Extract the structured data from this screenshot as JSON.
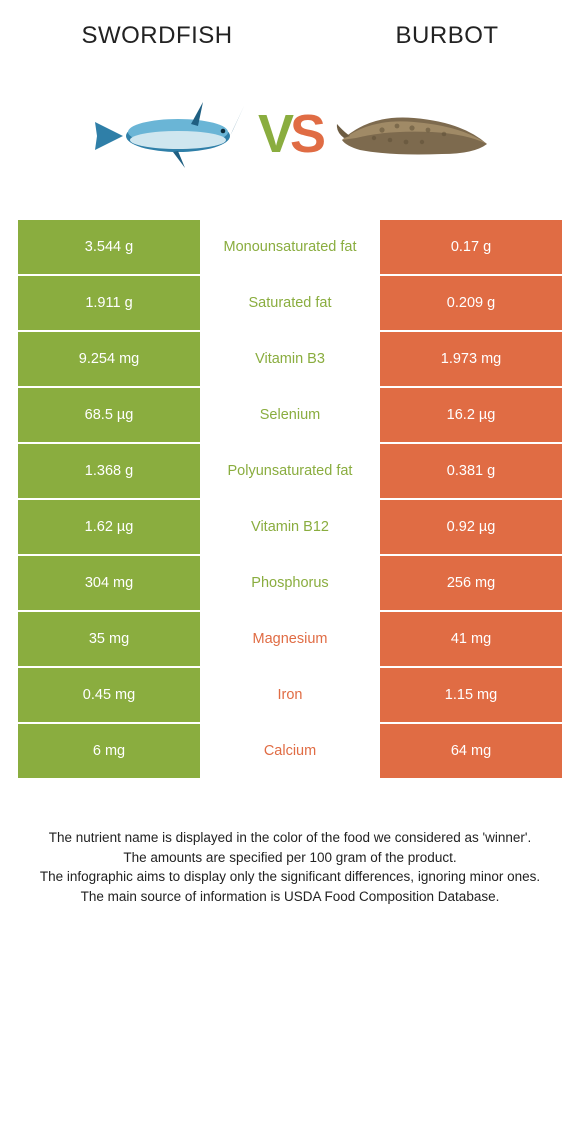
{
  "header": {
    "left": "Swordfish",
    "right": "Burbot"
  },
  "vs": {
    "v": "V",
    "s": "S"
  },
  "colors": {
    "left": "#8aad3f",
    "right": "#e06c44",
    "leftText": "#8aad3f",
    "rightText": "#e06c44",
    "bg": "#ffffff"
  },
  "rows": [
    {
      "left": "3.544 g",
      "label": "Monounsaturated fat",
      "right": "0.17 g",
      "winner": "left"
    },
    {
      "left": "1.911 g",
      "label": "Saturated fat",
      "right": "0.209 g",
      "winner": "left"
    },
    {
      "left": "9.254 mg",
      "label": "Vitamin B3",
      "right": "1.973 mg",
      "winner": "left"
    },
    {
      "left": "68.5 µg",
      "label": "Selenium",
      "right": "16.2 µg",
      "winner": "left"
    },
    {
      "left": "1.368 g",
      "label": "Polyunsaturated fat",
      "right": "0.381 g",
      "winner": "left"
    },
    {
      "left": "1.62 µg",
      "label": "Vitamin B12",
      "right": "0.92 µg",
      "winner": "left"
    },
    {
      "left": "304 mg",
      "label": "Phosphorus",
      "right": "256 mg",
      "winner": "left"
    },
    {
      "left": "35 mg",
      "label": "Magnesium",
      "right": "41 mg",
      "winner": "right"
    },
    {
      "left": "0.45 mg",
      "label": "Iron",
      "right": "1.15 mg",
      "winner": "right"
    },
    {
      "left": "6 mg",
      "label": "Calcium",
      "right": "64 mg",
      "winner": "right"
    }
  ],
  "footer": {
    "l1": "The nutrient name is displayed in the color of the food we considered as 'winner'.",
    "l2": "The amounts are specified per 100 gram of the product.",
    "l3": "The infographic aims to display only the significant differences, ignoring minor ones.",
    "l4": "The main source of information is USDA Food Composition Database."
  }
}
